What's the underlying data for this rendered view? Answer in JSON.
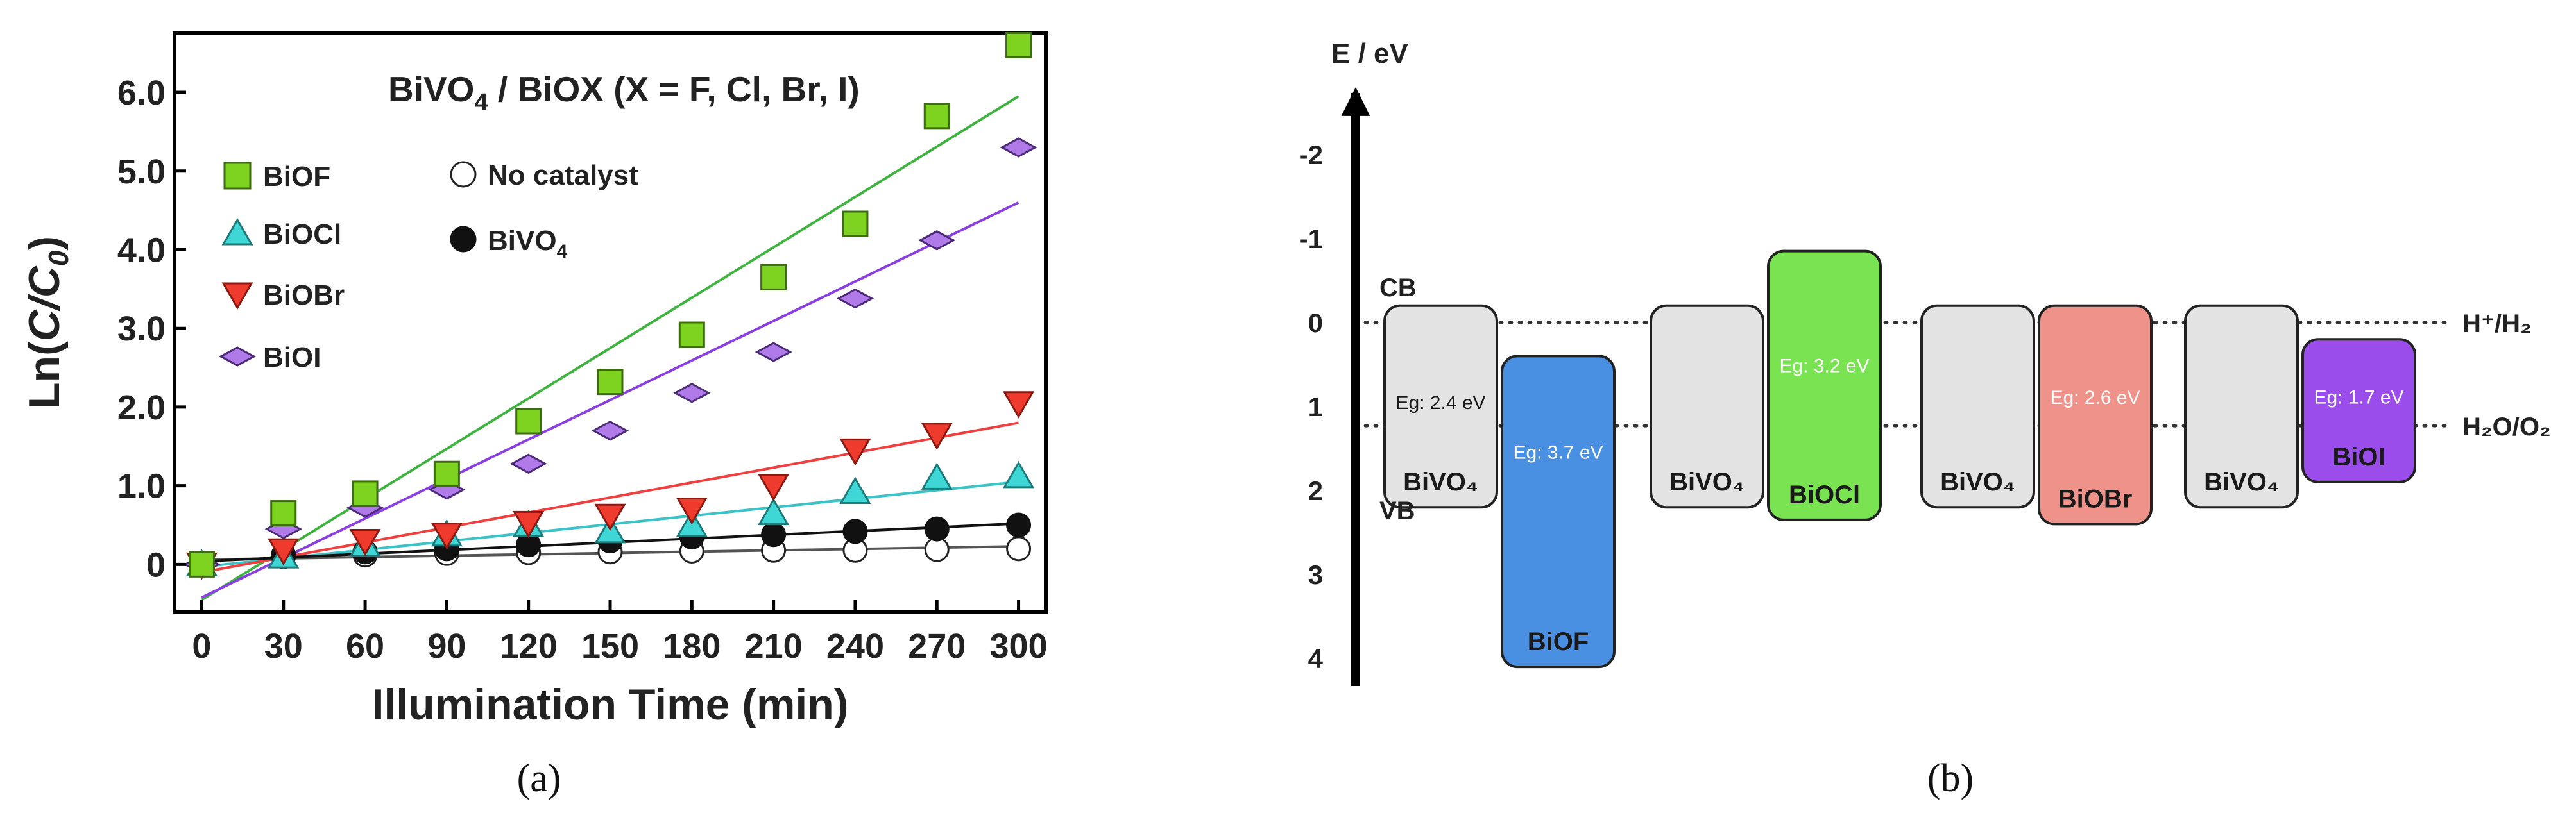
{
  "chart_data": [
    {
      "type": "scatter",
      "panel_label": "(a)",
      "title": "BiVO4 / BiOX (X = F, Cl, Br, I)",
      "title_main": "BiVO",
      "title_sub": "4",
      "title_rest": " / BiOX (X = F, Cl, Br, I)",
      "xlabel": "Illumination Time (min)",
      "ylabel": "Ln(C/C0)",
      "ylabel_prefix": "Ln(",
      "ylabel_italic": "C/C",
      "ylabel_sub": "0",
      "ylabel_suffix": ")",
      "xlim": [
        -10,
        310
      ],
      "ylim": [
        -0.6,
        6.75
      ],
      "xticks": [
        0,
        30,
        60,
        90,
        120,
        150,
        180,
        210,
        240,
        270,
        300
      ],
      "xtick_labels": [
        "0",
        "30",
        "60",
        "90",
        "120",
        "150",
        "180",
        "210",
        "240",
        "270",
        "300"
      ],
      "yticks": [
        0,
        1,
        2,
        3,
        4,
        5,
        6
      ],
      "ytick_labels": [
        "0",
        "1.0",
        "2.0",
        "3.0",
        "4.0",
        "5.0",
        "6.0"
      ],
      "x": [
        0,
        30,
        60,
        90,
        120,
        150,
        180,
        210,
        240,
        270,
        300
      ],
      "series": [
        {
          "name": "BiOF",
          "marker": "square",
          "color": "#7ed321",
          "stroke": "#3c6e0f",
          "fit_color": "#3fb33f",
          "values": [
            0,
            0.65,
            0.9,
            1.15,
            1.82,
            2.32,
            2.92,
            3.65,
            4.33,
            5.7,
            6.6
          ],
          "fit": [
            -0.45,
            5.95
          ]
        },
        {
          "name": "BiOCl",
          "marker": "triangle-up",
          "color": "#3fd7d6",
          "stroke": "#1b7a7a",
          "fit_color": "#3cc3c8",
          "values": [
            0,
            0.1,
            0.25,
            0.38,
            0.5,
            0.42,
            0.5,
            0.65,
            0.92,
            1.1,
            1.12
          ],
          "fit": [
            -0.03,
            1.05
          ]
        },
        {
          "name": "BiOBr",
          "marker": "triangle-down",
          "color": "#ef3a2e",
          "stroke": "#8a1a12",
          "fit_color": "#ef4040",
          "values": [
            0,
            0.18,
            0.3,
            0.38,
            0.53,
            0.62,
            0.7,
            1.0,
            1.45,
            1.65,
            2.05
          ],
          "fit": [
            -0.1,
            1.8
          ]
        },
        {
          "name": "BiOI",
          "marker": "diamond",
          "color": "#b07ae8",
          "stroke": "#4b2a78",
          "fit_color": "#8a3fe0",
          "values": [
            0,
            0.45,
            0.72,
            0.95,
            1.28,
            1.7,
            2.18,
            2.7,
            3.38,
            4.12,
            5.3
          ],
          "fit": [
            -0.42,
            4.6
          ]
        },
        {
          "name": "No catalyst",
          "marker": "circle-open",
          "color": "#ffffff",
          "stroke": "#222222",
          "fit_color": "#555555",
          "values": [
            0,
            0.1,
            0.12,
            0.14,
            0.15,
            0.16,
            0.17,
            0.18,
            0.18,
            0.19,
            0.2
          ],
          "fit": [
            0.06,
            0.23
          ]
        },
        {
          "name": "BiVO4",
          "name_main": "BiVO",
          "name_sub": "4",
          "marker": "circle-filled",
          "color": "#111111",
          "stroke": "#111111",
          "fit_color": "#111111",
          "values": [
            0,
            0.12,
            0.16,
            0.2,
            0.25,
            0.3,
            0.35,
            0.38,
            0.42,
            0.45,
            0.5
          ],
          "fit": [
            0.04,
            0.52
          ]
        }
      ]
    },
    {
      "type": "band-diagram",
      "panel_label": "(b)",
      "axis_label": "E / eV",
      "axis_range": [
        -2.6,
        4.5
      ],
      "ticks": [
        -2,
        -1,
        0,
        1,
        2,
        3,
        4
      ],
      "tick_labels": [
        "-2",
        "-1",
        "0",
        "1",
        "2",
        "3",
        "4"
      ],
      "cb_label": "CB",
      "vb_label": "VB",
      "ref_levels": [
        {
          "label": "H⁺/H₂",
          "value": 0.0
        },
        {
          "label": "H₂O/O₂",
          "value": 1.23
        }
      ],
      "pairs": [
        {
          "bivo4": {
            "name": "BiVO₄",
            "cb": -0.2,
            "vb": 2.2,
            "eg_label": "Eg: 2.4 eV",
            "color": "#e3e3e3"
          },
          "biox": {
            "name": "BiOF",
            "cb": 0.4,
            "vb": 4.1,
            "eg_label": "Eg: 3.7 eV",
            "color": "#4a90e2"
          }
        },
        {
          "bivo4": {
            "name": "BiVO₄",
            "cb": -0.2,
            "vb": 2.2,
            "eg_label": "",
            "color": "#e3e3e3"
          },
          "biox": {
            "name": "BiOCl",
            "cb": -0.85,
            "vb": 2.35,
            "eg_label": "Eg: 3.2 eV",
            "color": "#7ae352"
          }
        },
        {
          "bivo4": {
            "name": "BiVO₄",
            "cb": -0.2,
            "vb": 2.2,
            "eg_label": "",
            "color": "#e3e3e3"
          },
          "biox": {
            "name": "BiOBr",
            "cb": -0.2,
            "vb": 2.4,
            "eg_label": "Eg: 2.6 eV",
            "color": "#ef928a"
          }
        },
        {
          "bivo4": {
            "name": "BiVO₄",
            "cb": -0.2,
            "vb": 2.2,
            "eg_label": "",
            "color": "#e3e3e3"
          },
          "biox": {
            "name": "BiOI",
            "cb": 0.2,
            "vb": 1.9,
            "eg_label": "Eg: 1.7 eV",
            "color": "#9b4dec"
          }
        }
      ]
    }
  ]
}
